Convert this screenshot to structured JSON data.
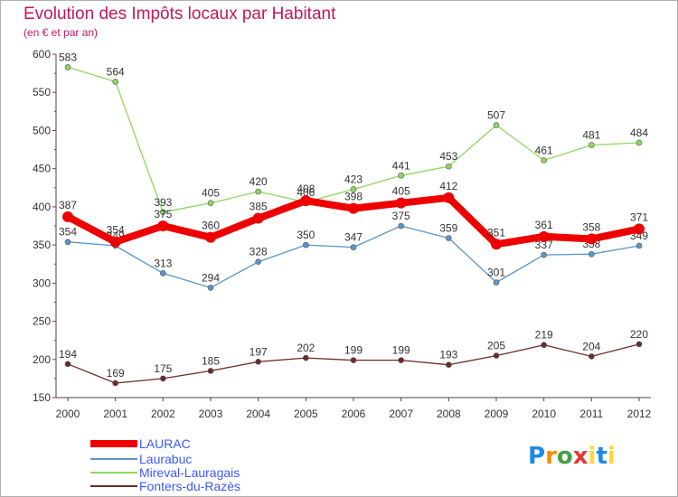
{
  "title": "Evolution des Impôts locaux par Habitant",
  "subtitle": "(en € et par an)",
  "logo": {
    "p": "P",
    "r": "r",
    "o": "o",
    "x": "x",
    "i": "i",
    "t": "t",
    "i2": "i"
  },
  "chart_data": {
    "type": "line",
    "x": [
      "2000",
      "2001",
      "2002",
      "2003",
      "2004",
      "2005",
      "2006",
      "2007",
      "2008",
      "2009",
      "2010",
      "2011",
      "2012"
    ],
    "ylim": [
      150,
      600
    ],
    "yticks": [
      150,
      200,
      250,
      300,
      350,
      400,
      450,
      500,
      550,
      600
    ],
    "grid": false,
    "legend_position": "bottom-left",
    "series": [
      {
        "name": "Mireval-Lauragais",
        "color": "#8ed660",
        "values": [
          583,
          564,
          393,
          405,
          420,
          406,
          423,
          441,
          453,
          507,
          461,
          481,
          484
        ]
      },
      {
        "name": "Laurabuc",
        "color": "#5a96c8",
        "values": [
          354,
          349,
          313,
          294,
          328,
          350,
          347,
          375,
          359,
          301,
          337,
          338,
          349
        ]
      },
      {
        "name": "Fonters-du-Razès",
        "color": "#6d2a2a",
        "values": [
          194,
          169,
          175,
          185,
          197,
          202,
          199,
          199,
          193,
          205,
          219,
          204,
          220
        ]
      },
      {
        "name": "LAURAC",
        "color": "#ee0000",
        "values": [
          387,
          354,
          375,
          360,
          385,
          408,
          398,
          405,
          412,
          351,
          361,
          358,
          371
        ]
      }
    ]
  }
}
